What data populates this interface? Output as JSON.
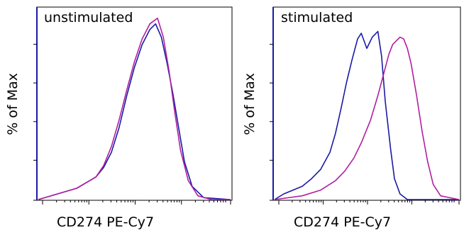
{
  "chart_data": [
    {
      "type": "line",
      "title": "unstimulated",
      "xlabel": "CD274 PE-Cy7",
      "ylabel": "% of Max",
      "x_scale": "log",
      "ylim": [
        0,
        100
      ],
      "grid": false,
      "series": [
        {
          "color": "#1a1aa6",
          "x": [
            0,
            10,
            20,
            30,
            34,
            38,
            42,
            46,
            50,
            54,
            58,
            61,
            64,
            67,
            70,
            73,
            76,
            80,
            86,
            100
          ],
          "values": [
            0,
            3,
            6,
            12,
            17,
            25,
            38,
            55,
            70,
            82,
            90,
            93,
            86,
            72,
            56,
            38,
            20,
            7,
            1,
            0
          ]
        },
        {
          "color": "#b0209f",
          "x": [
            0,
            10,
            20,
            30,
            34,
            38,
            42,
            46,
            50,
            54,
            58,
            62,
            65,
            68,
            71,
            74,
            78,
            83,
            90,
            100
          ],
          "values": [
            0,
            3,
            6,
            12,
            18,
            28,
            42,
            58,
            73,
            85,
            93,
            96,
            86,
            68,
            46,
            26,
            10,
            2,
            0,
            0
          ]
        }
      ]
    },
    {
      "type": "line",
      "title": "stimulated",
      "xlabel": "CD274 PE-Cy7",
      "ylabel": "% of Max",
      "x_scale": "log",
      "ylim": [
        0,
        100
      ],
      "grid": false,
      "series": [
        {
          "color": "#1a1aa6",
          "x": [
            0,
            5,
            10,
            15,
            20,
            25,
            30,
            33,
            36,
            39,
            42,
            45,
            47,
            50,
            53,
            56,
            58,
            60,
            63,
            65,
            68,
            72,
            80,
            100
          ],
          "values": [
            0,
            3,
            5,
            7,
            11,
            16,
            25,
            35,
            48,
            62,
            74,
            85,
            88,
            80,
            86,
            89,
            76,
            52,
            26,
            11,
            3,
            0,
            0,
            0
          ]
        },
        {
          "color": "#b0209f",
          "x": [
            0,
            15,
            25,
            33,
            38,
            43,
            47,
            52,
            56,
            59,
            62,
            64,
            66,
            68,
            70,
            72,
            74,
            77,
            80,
            83,
            86,
            90,
            100
          ],
          "values": [
            0,
            2,
            5,
            10,
            15,
            22,
            30,
            42,
            55,
            66,
            77,
            82,
            84,
            86,
            85,
            80,
            72,
            55,
            36,
            20,
            8,
            2,
            0
          ]
        }
      ]
    }
  ]
}
